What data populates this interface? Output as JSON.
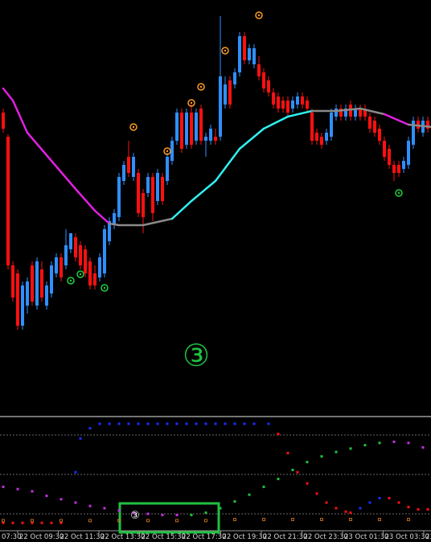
{
  "chart_data": {
    "type": "candlestick",
    "ylim": [
      0,
      515
    ],
    "up_color": "#2f8fff",
    "down_color": "#ff1010",
    "ohlc": [
      [
        375,
        380,
        350,
        355
      ],
      [
        345,
        348,
        180,
        185
      ],
      [
        185,
        190,
        140,
        145
      ],
      [
        175,
        180,
        105,
        110
      ],
      [
        110,
        165,
        105,
        160
      ],
      [
        135,
        170,
        125,
        165
      ],
      [
        185,
        190,
        135,
        140
      ],
      [
        135,
        195,
        130,
        190
      ],
      [
        180,
        190,
        140,
        145
      ],
      [
        135,
        165,
        130,
        160
      ],
      [
        150,
        190,
        145,
        185
      ],
      [
        175,
        200,
        170,
        195
      ],
      [
        195,
        200,
        165,
        170
      ],
      [
        185,
        230,
        180,
        210
      ],
      [
        205,
        225,
        200,
        225
      ],
      [
        220,
        225,
        190,
        195
      ],
      [
        210,
        215,
        180,
        185
      ],
      [
        205,
        210,
        170,
        175
      ],
      [
        190,
        195,
        155,
        160
      ],
      [
        175,
        185,
        155,
        160
      ],
      [
        170,
        200,
        165,
        195
      ],
      [
        175,
        235,
        170,
        230
      ],
      [
        215,
        245,
        210,
        240
      ],
      [
        235,
        255,
        230,
        250
      ],
      [
        245,
        300,
        240,
        295
      ],
      [
        290,
        315,
        285,
        310
      ],
      [
        320,
        340,
        295,
        300
      ],
      [
        295,
        325,
        290,
        320
      ],
      [
        300,
        305,
        245,
        250
      ],
      [
        275,
        280,
        225,
        245
      ],
      [
        275,
        300,
        270,
        295
      ],
      [
        295,
        300,
        240,
        250
      ],
      [
        265,
        305,
        260,
        300
      ],
      [
        295,
        300,
        260,
        265
      ],
      [
        290,
        325,
        285,
        320
      ],
      [
        315,
        345,
        310,
        340
      ],
      [
        340,
        380,
        335,
        375
      ],
      [
        375,
        380,
        325,
        330
      ],
      [
        335,
        380,
        330,
        375
      ],
      [
        375,
        385,
        330,
        335
      ],
      [
        340,
        380,
        335,
        375
      ],
      [
        380,
        385,
        335,
        340
      ],
      [
        340,
        350,
        320,
        345
      ],
      [
        340,
        360,
        335,
        355
      ],
      [
        345,
        355,
        335,
        340
      ],
      [
        345,
        495,
        340,
        420
      ],
      [
        385,
        420,
        380,
        410
      ],
      [
        415,
        420,
        380,
        385
      ],
      [
        410,
        430,
        405,
        425
      ],
      [
        425,
        475,
        420,
        470
      ],
      [
        470,
        475,
        435,
        440
      ],
      [
        440,
        460,
        435,
        455
      ],
      [
        435,
        460,
        430,
        455
      ],
      [
        435,
        445,
        415,
        420
      ],
      [
        425,
        430,
        400,
        405
      ],
      [
        415,
        420,
        395,
        400
      ],
      [
        400,
        405,
        380,
        385
      ],
      [
        395,
        400,
        375,
        380
      ],
      [
        390,
        395,
        375,
        380
      ],
      [
        390,
        395,
        370,
        375
      ],
      [
        380,
        395,
        375,
        390
      ],
      [
        385,
        400,
        380,
        395
      ],
      [
        395,
        400,
        380,
        385
      ],
      [
        390,
        395,
        375,
        380
      ],
      [
        375,
        380,
        335,
        340
      ],
      [
        350,
        355,
        335,
        340
      ],
      [
        345,
        350,
        330,
        335
      ],
      [
        340,
        355,
        335,
        350
      ],
      [
        345,
        380,
        340,
        375
      ],
      [
        370,
        385,
        365,
        380
      ],
      [
        380,
        385,
        365,
        370
      ],
      [
        370,
        385,
        365,
        380
      ],
      [
        385,
        390,
        365,
        370
      ],
      [
        370,
        385,
        365,
        380
      ],
      [
        380,
        385,
        365,
        370
      ],
      [
        380,
        385,
        365,
        370
      ],
      [
        370,
        375,
        350,
        355
      ],
      [
        365,
        370,
        345,
        350
      ],
      [
        355,
        360,
        335,
        340
      ],
      [
        340,
        345,
        315,
        320
      ],
      [
        330,
        335,
        305,
        310
      ],
      [
        310,
        315,
        290,
        300
      ],
      [
        310,
        315,
        295,
        300
      ],
      [
        305,
        320,
        300,
        315
      ],
      [
        310,
        345,
        305,
        340
      ],
      [
        335,
        370,
        330,
        365
      ],
      [
        365,
        370,
        350,
        355
      ],
      [
        350,
        370,
        345,
        365
      ],
      [
        365,
        370,
        350,
        355
      ]
    ],
    "ma": {
      "x": [
        0,
        2,
        5,
        10,
        15,
        19,
        22,
        24,
        29,
        35,
        39,
        44,
        49,
        54,
        59,
        64,
        69,
        74,
        79,
        84,
        89
      ],
      "values": [
        405,
        390,
        350,
        315,
        280,
        253,
        237,
        235,
        235,
        243,
        265,
        290,
        330,
        355,
        370,
        377,
        377,
        380,
        373,
        360,
        357
      ],
      "colors": [
        "#e020e0",
        "#e020e0",
        "#e020e0",
        "#e020e0",
        "#e020e0",
        "#e020e0",
        "#e020e0",
        "#8a8a8a",
        "#8a8a8a",
        "#8a8a8a",
        "#30f0f0",
        "#30f0f0",
        "#30f0f0",
        "#30f0f0",
        "#30f0f0",
        "#30f0f0",
        "#8a8a8a",
        "#8a8a8a",
        "#8a8a8a",
        "#e020e0",
        "#8a8a8a"
      ]
    },
    "signals": {
      "x": [
        27,
        34,
        39,
        41,
        46,
        53,
        14,
        16,
        21,
        82
      ],
      "values": [
        357,
        327,
        387,
        407,
        452,
        496,
        166,
        174,
        157,
        275
      ],
      "colors": [
        "#ff9a20",
        "#ff9a20",
        "#ff9a20",
        "#ff9a20",
        "#ff9a20",
        "#ff9a20",
        "#20d040",
        "#20d040",
        "#20d040",
        "#20d040"
      ]
    },
    "annotations": [
      "③",
      "③"
    ],
    "indicator": {
      "ylim": [
        0,
        100
      ],
      "levels": [
        85,
        50,
        15
      ],
      "series": [
        {
          "x": [
            0,
            2,
            4,
            6,
            8,
            10,
            12,
            15,
            16,
            18,
            20,
            22,
            24,
            26,
            28,
            30,
            32,
            34,
            36,
            38,
            40,
            42,
            44,
            46,
            48,
            50,
            52,
            55,
            57,
            59,
            61,
            63,
            65,
            67,
            69,
            71,
            72,
            74,
            76,
            78,
            80,
            82,
            84,
            86,
            88
          ],
          "values": [
            7,
            7,
            7,
            7,
            7,
            7,
            7,
            52,
            82,
            91,
            95,
            95,
            95,
            95,
            95,
            95,
            95,
            95,
            95,
            95,
            95,
            95,
            95,
            95,
            95,
            95,
            95,
            95,
            86,
            69,
            52,
            42,
            33,
            25,
            20,
            17,
            16,
            20,
            25,
            29,
            29,
            25,
            21,
            19,
            19
          ],
          "colors": [
            "#ff1010",
            "#ff1010",
            "#ff1010",
            "#ff1010",
            "#ff1010",
            "#ff1010",
            "#ff1010",
            "#1830ff",
            "#1830ff",
            "#1830ff",
            "#1830ff",
            "#1830ff",
            "#1830ff",
            "#1830ff",
            "#1830ff",
            "#1830ff",
            "#1830ff",
            "#1830ff",
            "#1830ff",
            "#1830ff",
            "#1830ff",
            "#1830ff",
            "#1830ff",
            "#1830ff",
            "#1830ff",
            "#1830ff",
            "#1830ff",
            "#1830ff",
            "#ff1010",
            "#ff1010",
            "#ff1010",
            "#ff1010",
            "#ff1010",
            "#ff1010",
            "#ff1010",
            "#ff1010",
            "#ff1010",
            "#1830ff",
            "#1830ff",
            "#1830ff",
            "#ff1010",
            "#ff1010",
            "#ff1010",
            "#ff1010",
            "#ff1010"
          ]
        },
        {
          "x": [
            0,
            3,
            6,
            9,
            12,
            15,
            18,
            21,
            24,
            27,
            30,
            33,
            36,
            39,
            42,
            45,
            48,
            51,
            54,
            57,
            60,
            63,
            66,
            69,
            72,
            75,
            78,
            81,
            84,
            87,
            89
          ],
          "values": [
            39,
            37,
            35,
            31,
            28,
            25,
            22,
            20,
            18,
            16,
            15,
            14,
            14,
            14,
            16,
            20,
            26,
            32,
            39,
            46,
            54,
            61,
            66,
            70,
            73,
            76,
            78,
            79,
            78,
            74,
            72
          ],
          "colors": [
            "#c030e0",
            "#c030e0",
            "#c030e0",
            "#c030e0",
            "#c030e0",
            "#c030e0",
            "#c030e0",
            "#c030e0",
            "#c030e0",
            "#c030e0",
            "#c030e0",
            "#c030e0",
            "#c030e0",
            "#20c040",
            "#20c040",
            "#20c040",
            "#20c040",
            "#20c040",
            "#20c040",
            "#20c040",
            "#20c040",
            "#20c040",
            "#20c040",
            "#20c040",
            "#20c040",
            "#20c040",
            "#20c040",
            "#c030e0",
            "#c030e0",
            "#c030e0",
            "#c030e0"
          ]
        },
        {
          "x": [
            0,
            6,
            12,
            18,
            24,
            30,
            36,
            42,
            48,
            54,
            60,
            66,
            72,
            78,
            84,
            89
          ],
          "values": [
            9,
            9,
            9,
            9,
            9,
            9,
            9,
            9,
            10,
            10,
            10,
            10,
            10,
            10,
            10,
            10
          ],
          "colors": [
            "#e08020",
            "#e08020",
            "#e08020",
            "#e08020",
            "#e08020",
            "#e08020",
            "#e08020",
            "#e08020",
            "#e08020",
            "#e08020",
            "#e08020",
            "#e08020",
            "#e08020",
            "#e08020",
            "#e08020",
            "#e08020"
          ]
        }
      ]
    },
    "xlabels": [
      "07:30",
      "22 Oct 09:30",
      "22 Oct 11:30",
      "22 Oct 13:30",
      "22 Oct 15:30",
      "22 Oct 17:30",
      "22 Oct 19:30",
      "22 Oct 21:30",
      "22 Oct 23:30",
      "23 Oct 01:30",
      "23 Oct 03:30",
      "23"
    ]
  }
}
